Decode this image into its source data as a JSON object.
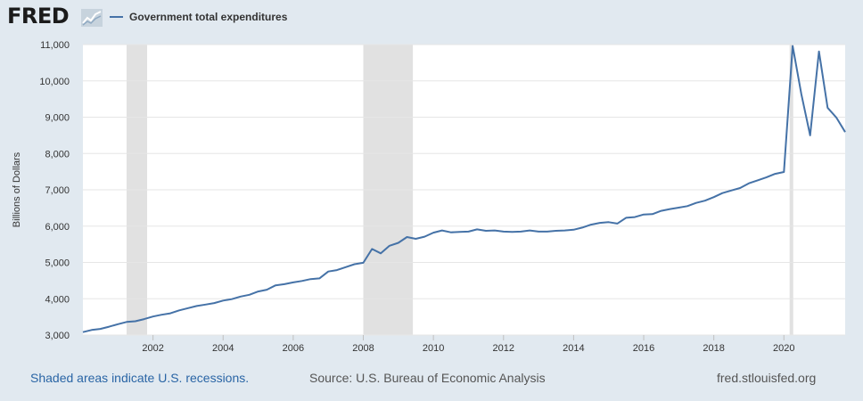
{
  "header": {
    "logo_text": "FRED",
    "logo_icon": "fred-chart-icon",
    "legend_label": "Government total expenditures"
  },
  "footer": {
    "recession_note": "Shaded areas indicate U.S. recessions.",
    "source": "Source: U.S. Bureau of Economic Analysis",
    "site": "fred.stlouisfed.org"
  },
  "colors": {
    "background": "#e1e9f0",
    "plot_background": "#ffffff",
    "series": "#4572a7",
    "recession": "#e1e1e1",
    "gridline": "#e6e6e6"
  },
  "chart_data": {
    "type": "line",
    "ylabel": "Billions of Dollars",
    "xlabel": "",
    "ylim": [
      3000,
      11000
    ],
    "xlim": [
      "2000-01-01",
      "2021-10-01"
    ],
    "grid": true,
    "legend_position": "top-left",
    "y_ticks": [
      {
        "value": 3000,
        "label": "3,000"
      },
      {
        "value": 4000,
        "label": "4,000"
      },
      {
        "value": 5000,
        "label": "5,000"
      },
      {
        "value": 6000,
        "label": "6,000"
      },
      {
        "value": 7000,
        "label": "7,000"
      },
      {
        "value": 8000,
        "label": "8,000"
      },
      {
        "value": 9000,
        "label": "9,000"
      },
      {
        "value": 10000,
        "label": "10,000"
      },
      {
        "value": 11000,
        "label": "11,000"
      }
    ],
    "x_ticks": [
      {
        "value": "2002-01-01",
        "label": "2002"
      },
      {
        "value": "2004-01-01",
        "label": "2004"
      },
      {
        "value": "2006-01-01",
        "label": "2006"
      },
      {
        "value": "2008-01-01",
        "label": "2008"
      },
      {
        "value": "2010-01-01",
        "label": "2010"
      },
      {
        "value": "2012-01-01",
        "label": "2012"
      },
      {
        "value": "2014-01-01",
        "label": "2014"
      },
      {
        "value": "2016-01-01",
        "label": "2016"
      },
      {
        "value": "2018-01-01",
        "label": "2018"
      },
      {
        "value": "2020-01-01",
        "label": "2020"
      }
    ],
    "recessions": [
      {
        "start": "2001-04-01",
        "end": "2001-11-01"
      },
      {
        "start": "2008-01-01",
        "end": "2009-06-01"
      },
      {
        "start": "2020-03-01",
        "end": "2020-04-01"
      }
    ],
    "series": [
      {
        "name": "Government total expenditures",
        "x": [
          "2000-01-01",
          "2000-04-01",
          "2000-07-01",
          "2000-10-01",
          "2001-01-01",
          "2001-04-01",
          "2001-07-01",
          "2001-10-01",
          "2002-01-01",
          "2002-04-01",
          "2002-07-01",
          "2002-10-01",
          "2003-01-01",
          "2003-04-01",
          "2003-07-01",
          "2003-10-01",
          "2004-01-01",
          "2004-04-01",
          "2004-07-01",
          "2004-10-01",
          "2005-01-01",
          "2005-04-01",
          "2005-07-01",
          "2005-10-01",
          "2006-01-01",
          "2006-04-01",
          "2006-07-01",
          "2006-10-01",
          "2007-01-01",
          "2007-04-01",
          "2007-07-01",
          "2007-10-01",
          "2008-01-01",
          "2008-04-01",
          "2008-07-01",
          "2008-10-01",
          "2009-01-01",
          "2009-04-01",
          "2009-07-01",
          "2009-10-01",
          "2010-01-01",
          "2010-04-01",
          "2010-07-01",
          "2010-10-01",
          "2011-01-01",
          "2011-04-01",
          "2011-07-01",
          "2011-10-01",
          "2012-01-01",
          "2012-04-01",
          "2012-07-01",
          "2012-10-01",
          "2013-01-01",
          "2013-04-01",
          "2013-07-01",
          "2013-10-01",
          "2014-01-01",
          "2014-04-01",
          "2014-07-01",
          "2014-10-01",
          "2015-01-01",
          "2015-04-01",
          "2015-07-01",
          "2015-10-01",
          "2016-01-01",
          "2016-04-01",
          "2016-07-01",
          "2016-10-01",
          "2017-01-01",
          "2017-04-01",
          "2017-07-01",
          "2017-10-01",
          "2018-01-01",
          "2018-04-01",
          "2018-07-01",
          "2018-10-01",
          "2019-01-01",
          "2019-04-01",
          "2019-07-01",
          "2019-10-01",
          "2020-01-01",
          "2020-04-01",
          "2020-07-01",
          "2020-10-01",
          "2021-01-01",
          "2021-04-01",
          "2021-07-01",
          "2021-10-01"
        ],
        "values": [
          3080,
          3140,
          3170,
          3230,
          3300,
          3360,
          3380,
          3440,
          3510,
          3560,
          3600,
          3680,
          3740,
          3800,
          3840,
          3880,
          3950,
          3990,
          4060,
          4110,
          4200,
          4250,
          4370,
          4400,
          4450,
          4490,
          4540,
          4560,
          4750,
          4790,
          4870,
          4950,
          4990,
          5370,
          5250,
          5460,
          5540,
          5700,
          5650,
          5710,
          5820,
          5880,
          5830,
          5840,
          5850,
          5910,
          5870,
          5880,
          5850,
          5840,
          5850,
          5880,
          5850,
          5850,
          5870,
          5880,
          5900,
          5960,
          6040,
          6090,
          6110,
          6070,
          6230,
          6250,
          6320,
          6330,
          6420,
          6470,
          6510,
          6550,
          6640,
          6700,
          6800,
          6910,
          6980,
          7050,
          7180,
          7260,
          7340,
          7440,
          7490,
          10960,
          9640,
          8500,
          10810,
          9260,
          8990,
          8590
        ]
      }
    ]
  }
}
